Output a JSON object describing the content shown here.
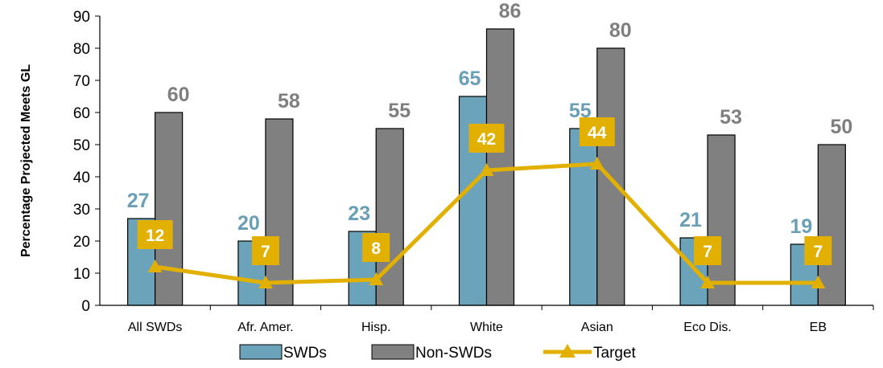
{
  "chart_data": {
    "type": "bar",
    "title": "",
    "xlabel": "",
    "ylabel": "Percentage Projected Meets GL",
    "ylim": [
      0,
      90
    ],
    "yticks": [
      0,
      10,
      20,
      30,
      40,
      50,
      60,
      70,
      80,
      90
    ],
    "categories": [
      "All SWDs",
      "Afr. Amer.",
      "Hisp.",
      "White",
      "Asian",
      "Eco Dis.",
      "EB"
    ],
    "series": [
      {
        "name": "SWDs",
        "kind": "bar",
        "color": "#6ba3ba",
        "label_color": "#6a9fb5",
        "values": [
          27,
          20,
          23,
          65,
          55,
          21,
          19
        ]
      },
      {
        "name": "Non-SWDs",
        "kind": "bar",
        "color": "#808080",
        "label_color": "#7f7f7f",
        "values": [
          60,
          58,
          55,
          86,
          80,
          53,
          50
        ]
      },
      {
        "name": "Target",
        "kind": "line",
        "color": "#e1b000",
        "values": [
          12,
          7,
          8,
          42,
          44,
          7,
          7
        ]
      }
    ],
    "grid": false,
    "legend_position": "bottom"
  }
}
